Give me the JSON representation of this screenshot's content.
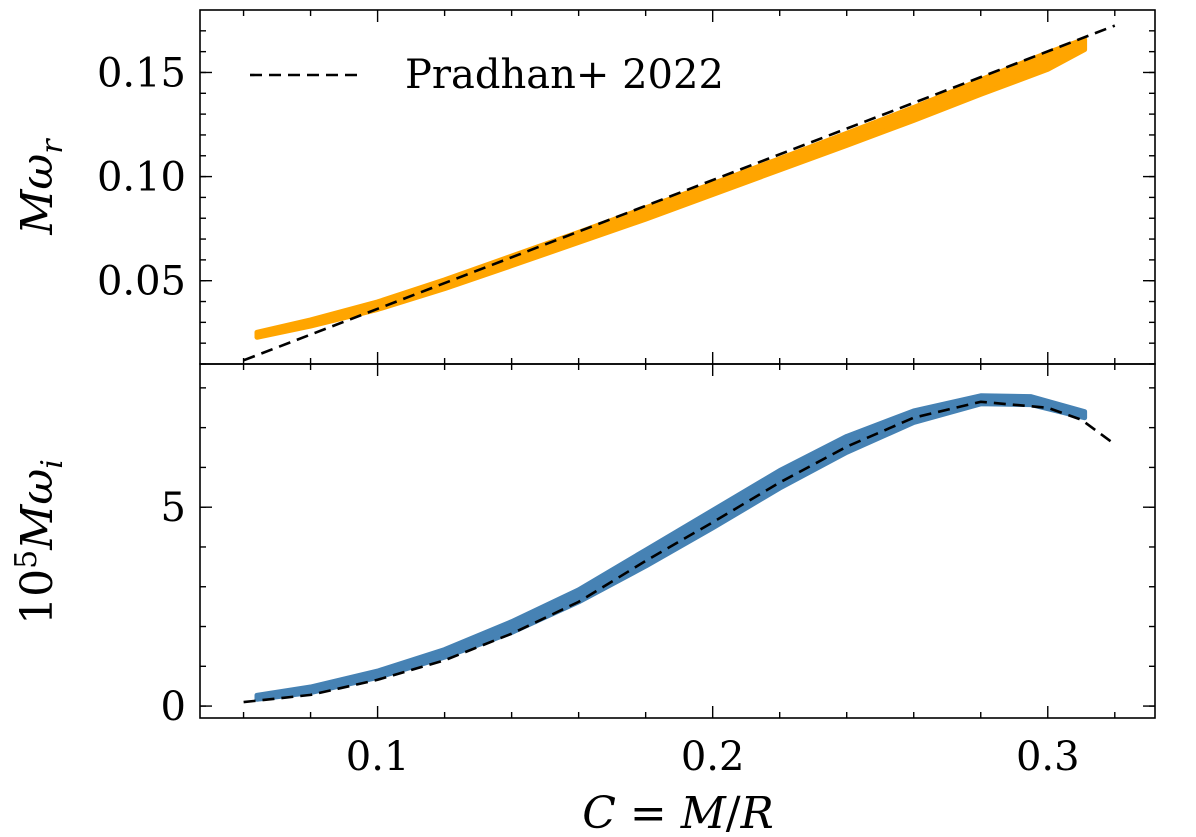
{
  "chart_data": [
    {
      "id": "top",
      "type": "line",
      "title": "",
      "xlabel": "",
      "ylabel": "Mω_r",
      "ylabel_parts": {
        "main": "Mω",
        "sub": "r"
      },
      "xlim": [
        0.047,
        0.332
      ],
      "ylim": [
        0.01,
        0.18
      ],
      "yticks": [
        0.05,
        0.1,
        0.15
      ],
      "ytick_labels": [
        "0.05",
        "0.10",
        "0.15"
      ],
      "legend": {
        "position": "top-left",
        "entries": [
          {
            "label": "Pradhan+ 2022",
            "style": "dashed",
            "color": "#000000"
          }
        ]
      },
      "series": [
        {
          "name": "data band",
          "style": "band",
          "color": "#FFA500",
          "x": [
            0.064,
            0.08,
            0.1,
            0.12,
            0.14,
            0.16,
            0.18,
            0.2,
            0.22,
            0.24,
            0.26,
            0.28,
            0.3,
            0.311
          ],
          "y_lower": [
            0.0228,
            0.0282,
            0.0362,
            0.0462,
            0.0572,
            0.0684,
            0.0796,
            0.0914,
            0.1032,
            0.115,
            0.127,
            0.1395,
            0.1515,
            0.161
          ],
          "y_upper": [
            0.0252,
            0.0312,
            0.0398,
            0.0504,
            0.0618,
            0.0732,
            0.085,
            0.0966,
            0.1086,
            0.1208,
            0.1332,
            0.1465,
            0.1595,
            0.166
          ]
        },
        {
          "name": "Pradhan+ 2022",
          "style": "dashed",
          "color": "#000000",
          "x": [
            0.06,
            0.32
          ],
          "y": [
            0.0118,
            0.1725
          ]
        }
      ]
    },
    {
      "id": "bottom",
      "type": "line",
      "title": "",
      "xlabel": "C = M/R",
      "xlabel_parts": [
        "C",
        " = ",
        "M",
        "/",
        "R"
      ],
      "ylabel": "10^5 Mω_i",
      "ylabel_parts": {
        "base": "10",
        "sup": "5",
        "main": "Mω",
        "sub": "i"
      },
      "xlim": [
        0.047,
        0.332
      ],
      "ylim": [
        -0.3,
        8.6
      ],
      "xticks": [
        0.1,
        0.2,
        0.3
      ],
      "xtick_labels": [
        "0.1",
        "0.2",
        "0.3"
      ],
      "yticks": [
        0,
        5
      ],
      "ytick_labels": [
        "0",
        "5"
      ],
      "series": [
        {
          "name": "data band",
          "style": "band",
          "color": "#4682B4",
          "x": [
            0.064,
            0.08,
            0.1,
            0.12,
            0.14,
            0.16,
            0.18,
            0.2,
            0.22,
            0.24,
            0.26,
            0.28,
            0.295,
            0.311
          ],
          "y_lower": [
            0.17,
            0.34,
            0.72,
            1.23,
            1.85,
            2.62,
            3.52,
            4.48,
            5.48,
            6.38,
            7.13,
            7.6,
            7.58,
            7.25
          ],
          "y_upper": [
            0.27,
            0.48,
            0.88,
            1.42,
            2.12,
            2.92,
            3.92,
            4.92,
            5.92,
            6.78,
            7.42,
            7.8,
            7.78,
            7.4
          ]
        },
        {
          "name": "Pradhan+ 2022",
          "style": "dashed",
          "color": "#000000",
          "x": [
            0.06,
            0.08,
            0.1,
            0.12,
            0.14,
            0.16,
            0.18,
            0.2,
            0.22,
            0.24,
            0.26,
            0.28,
            0.3,
            0.31,
            0.32
          ],
          "y": [
            0.1,
            0.28,
            0.66,
            1.15,
            1.82,
            2.62,
            3.65,
            4.62,
            5.62,
            6.52,
            7.25,
            7.65,
            7.5,
            7.2,
            6.58
          ]
        }
      ]
    }
  ]
}
